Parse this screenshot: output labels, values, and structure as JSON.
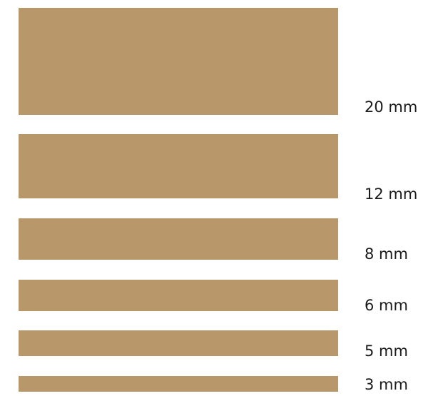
{
  "swatch_color": "#b8986a",
  "items": [
    {
      "label": "20 mm",
      "thickness_mm": 20
    },
    {
      "label": "12 mm",
      "thickness_mm": 12
    },
    {
      "label": "8 mm",
      "thickness_mm": 8
    },
    {
      "label": "6 mm",
      "thickness_mm": 6
    },
    {
      "label": "5 mm",
      "thickness_mm": 5
    },
    {
      "label": "3 mm",
      "thickness_mm": 3
    }
  ]
}
